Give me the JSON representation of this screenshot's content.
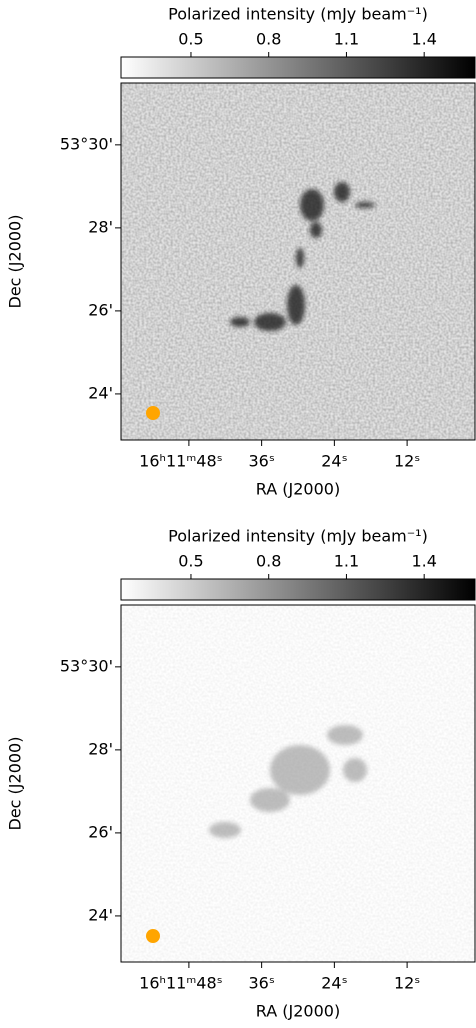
{
  "chart_data": [
    {
      "type": "image",
      "title": "Polarized intensity (mJy beam⁻¹)",
      "cmap": "Greys",
      "clim": [
        0.23,
        1.6
      ],
      "cticks": [
        0.5,
        0.8,
        1.1,
        1.4
      ],
      "xlabel": "RA (J2000)",
      "ylabel": "Dec (J2000)",
      "xlim": [
        59.2,
        0.8
      ],
      "xticks": [
        {
          "value": 48,
          "label": "16ʰ11ᵐ48ˢ"
        },
        {
          "value": 36,
          "label": "36ˢ"
        },
        {
          "value": 24,
          "label": "24ˢ"
        },
        {
          "value": 12,
          "label": "12ˢ"
        }
      ],
      "ylim": [
        22.89,
        31.49
      ],
      "yticks": [
        {
          "value": 30,
          "label": "53°30'"
        },
        {
          "value": 28,
          "label": "28'"
        },
        {
          "value": 26,
          "label": "26'"
        },
        {
          "value": 24,
          "label": "24'"
        }
      ]
    },
    {
      "type": "image",
      "title": "Polarized intensity (mJy beam⁻¹)",
      "cmap": "Greys",
      "clim": [
        0.23,
        1.6
      ],
      "cticks": [
        0.5,
        0.8,
        1.1,
        1.4
      ],
      "xlabel": "RA (J2000)",
      "ylabel": "Dec (J2000)",
      "xlim": [
        59.2,
        0.8
      ],
      "xticks": [
        {
          "value": 48,
          "label": "16ʰ11ᵐ48ˢ"
        },
        {
          "value": 36,
          "label": "36ˢ"
        },
        {
          "value": 24,
          "label": "24ˢ"
        },
        {
          "value": 12,
          "label": "12ˢ"
        }
      ],
      "ylim": [
        22.89,
        31.49
      ],
      "yticks": [
        {
          "value": 30,
          "label": "53°30'"
        },
        {
          "value": 28,
          "label": "28'"
        },
        {
          "value": 26,
          "label": "26'"
        },
        {
          "value": 24,
          "label": "24'"
        }
      ]
    }
  ]
}
